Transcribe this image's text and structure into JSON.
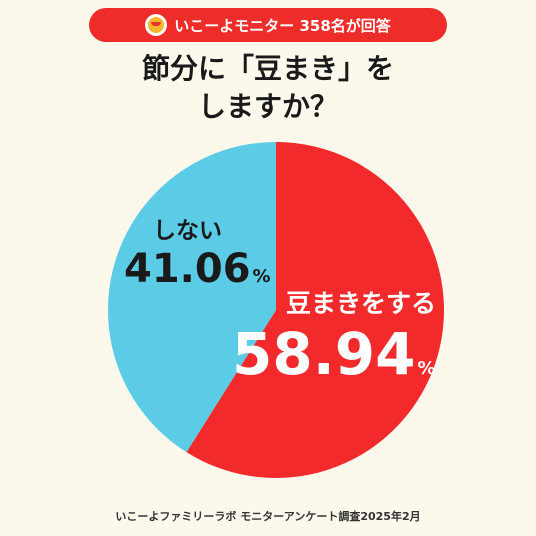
{
  "badge": {
    "icon": "mascot-face-icon",
    "text": "いこーよモニター 358名が回答"
  },
  "title_lines": [
    "節分に「豆まき」を",
    "しますか？"
  ],
  "chart_data": {
    "type": "pie",
    "slices": [
      {
        "label": "豆まきをする",
        "value": 58.94,
        "display": "58.94",
        "unit": "%",
        "color": "#f22a2b"
      },
      {
        "label": "しない",
        "value": 41.06,
        "display": "41.06",
        "unit": "%",
        "color": "#5ccbe5"
      }
    ]
  },
  "footer": "いこーよファミリーラボ モニターアンケート調査2025年2月",
  "colors": {
    "badge": "#ee2d2b",
    "background": "#fdf8ec"
  }
}
